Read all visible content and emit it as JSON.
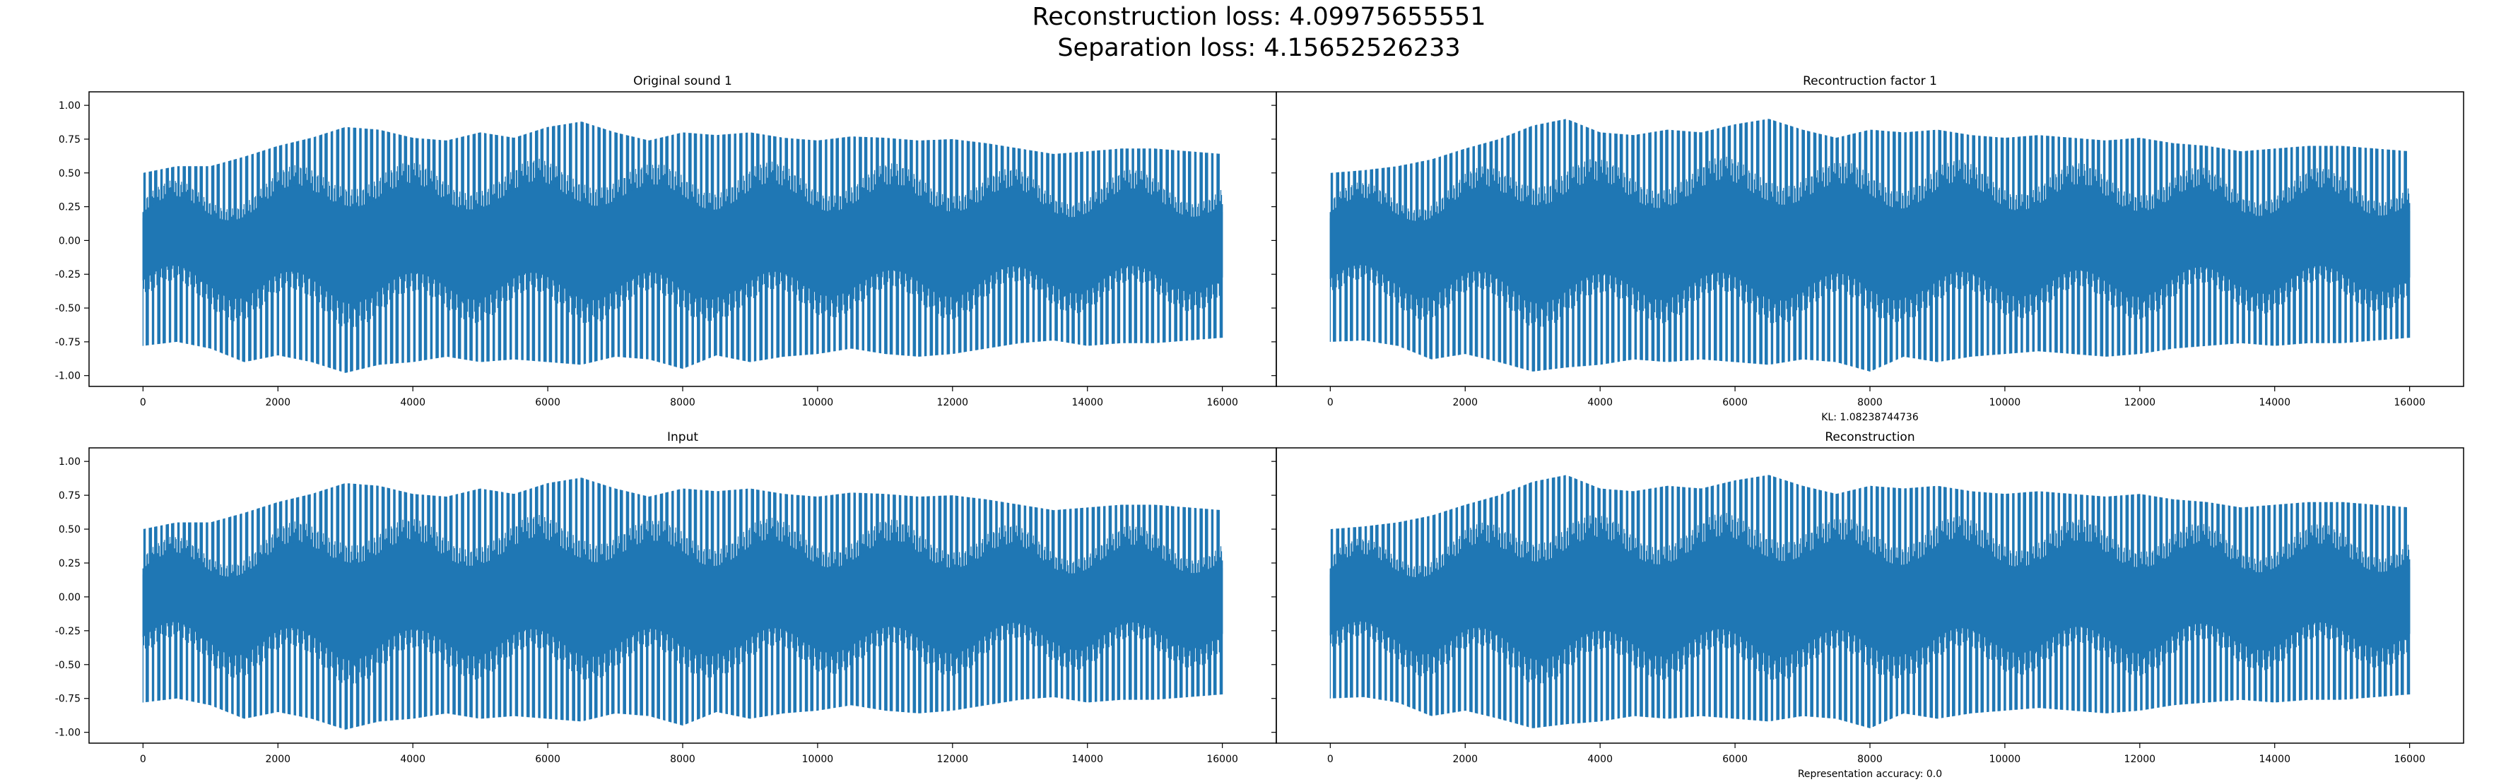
{
  "figure": {
    "title_line1": "Reconstruction loss: 4.09975655551",
    "title_line2": "Separation loss: 4.15652526233",
    "line_color": "#1f77b4"
  },
  "chart_data": [
    {
      "type": "line",
      "title": "Original sound 1",
      "xlabel": "",
      "xlim": [
        -800,
        16800
      ],
      "ylim": [
        -1.08,
        1.1
      ],
      "xticks": [
        0,
        2000,
        4000,
        6000,
        8000,
        10000,
        12000,
        14000,
        16000
      ],
      "yticks": [
        -1.0,
        -0.75,
        -0.5,
        -0.25,
        0.0,
        0.25,
        0.5,
        0.75,
        1.0
      ],
      "ytick_labels": [
        "-1.00",
        "-0.75",
        "-0.50",
        "-0.25",
        "0.00",
        "0.25",
        "0.50",
        "0.75",
        "1.00"
      ],
      "samples": 16000,
      "envelope_x": [
        0,
        500,
        1000,
        1500,
        2000,
        2500,
        3000,
        3500,
        4000,
        4500,
        5000,
        5500,
        6000,
        6500,
        7000,
        7500,
        8000,
        8500,
        9000,
        9500,
        10000,
        10500,
        11000,
        11500,
        12000,
        12500,
        13000,
        13500,
        14000,
        14500,
        15000,
        15500,
        16000
      ],
      "envelope_max": [
        0.5,
        0.55,
        0.55,
        0.62,
        0.7,
        0.76,
        0.84,
        0.82,
        0.76,
        0.74,
        0.8,
        0.76,
        0.84,
        0.88,
        0.8,
        0.74,
        0.8,
        0.78,
        0.8,
        0.76,
        0.74,
        0.77,
        0.76,
        0.74,
        0.75,
        0.72,
        0.68,
        0.64,
        0.66,
        0.68,
        0.68,
        0.66,
        0.64
      ],
      "envelope_min": [
        -0.78,
        -0.75,
        -0.8,
        -0.9,
        -0.85,
        -0.9,
        -0.98,
        -0.92,
        -0.9,
        -0.86,
        -0.9,
        -0.88,
        -0.9,
        -0.92,
        -0.86,
        -0.88,
        -0.95,
        -0.85,
        -0.9,
        -0.86,
        -0.84,
        -0.8,
        -0.84,
        -0.86,
        -0.84,
        -0.8,
        -0.76,
        -0.74,
        -0.78,
        -0.76,
        -0.76,
        -0.74,
        -0.72
      ]
    },
    {
      "type": "line",
      "title": "Recontruction factor 1",
      "xlabel": "KL: 1.08238744736",
      "xlim": [
        -800,
        16800
      ],
      "ylim": [
        -1.08,
        1.1
      ],
      "xticks": [
        0,
        2000,
        4000,
        6000,
        8000,
        10000,
        12000,
        14000,
        16000
      ],
      "yticks": [],
      "ytick_labels": [],
      "samples": 16000,
      "envelope_x": [
        0,
        500,
        1000,
        1500,
        2000,
        2500,
        3000,
        3500,
        4000,
        4500,
        5000,
        5500,
        6000,
        6500,
        7000,
        7500,
        8000,
        8500,
        9000,
        9500,
        10000,
        10500,
        11000,
        11500,
        12000,
        12500,
        13000,
        13500,
        14000,
        14500,
        15000,
        15500,
        16000
      ],
      "envelope_max": [
        0.5,
        0.52,
        0.55,
        0.6,
        0.68,
        0.75,
        0.85,
        0.9,
        0.8,
        0.78,
        0.82,
        0.8,
        0.86,
        0.9,
        0.82,
        0.76,
        0.82,
        0.8,
        0.82,
        0.78,
        0.76,
        0.78,
        0.76,
        0.74,
        0.76,
        0.72,
        0.7,
        0.66,
        0.68,
        0.7,
        0.7,
        0.68,
        0.66
      ],
      "envelope_min": [
        -0.75,
        -0.74,
        -0.78,
        -0.88,
        -0.84,
        -0.9,
        -0.97,
        -0.94,
        -0.92,
        -0.88,
        -0.9,
        -0.88,
        -0.9,
        -0.92,
        -0.88,
        -0.9,
        -0.97,
        -0.86,
        -0.9,
        -0.86,
        -0.84,
        -0.82,
        -0.84,
        -0.86,
        -0.84,
        -0.8,
        -0.78,
        -0.76,
        -0.78,
        -0.76,
        -0.76,
        -0.74,
        -0.72
      ]
    },
    {
      "type": "line",
      "title": "Input",
      "xlabel": "",
      "xlim": [
        -800,
        16800
      ],
      "ylim": [
        -1.08,
        1.1
      ],
      "xticks": [
        0,
        2000,
        4000,
        6000,
        8000,
        10000,
        12000,
        14000,
        16000
      ],
      "yticks": [
        -1.0,
        -0.75,
        -0.5,
        -0.25,
        0.0,
        0.25,
        0.5,
        0.75,
        1.0
      ],
      "ytick_labels": [
        "-1.00",
        "-0.75",
        "-0.50",
        "-0.25",
        "0.00",
        "0.25",
        "0.50",
        "0.75",
        "1.00"
      ],
      "samples": 16000,
      "envelope_x": [
        0,
        500,
        1000,
        1500,
        2000,
        2500,
        3000,
        3500,
        4000,
        4500,
        5000,
        5500,
        6000,
        6500,
        7000,
        7500,
        8000,
        8500,
        9000,
        9500,
        10000,
        10500,
        11000,
        11500,
        12000,
        12500,
        13000,
        13500,
        14000,
        14500,
        15000,
        15500,
        16000
      ],
      "envelope_max": [
        0.5,
        0.55,
        0.55,
        0.62,
        0.7,
        0.76,
        0.84,
        0.82,
        0.76,
        0.74,
        0.8,
        0.76,
        0.84,
        0.88,
        0.8,
        0.74,
        0.8,
        0.78,
        0.8,
        0.76,
        0.74,
        0.77,
        0.76,
        0.74,
        0.75,
        0.72,
        0.68,
        0.64,
        0.66,
        0.68,
        0.68,
        0.66,
        0.64
      ],
      "envelope_min": [
        -0.78,
        -0.75,
        -0.8,
        -0.9,
        -0.85,
        -0.9,
        -0.98,
        -0.92,
        -0.9,
        -0.86,
        -0.9,
        -0.88,
        -0.9,
        -0.92,
        -0.86,
        -0.88,
        -0.95,
        -0.85,
        -0.9,
        -0.86,
        -0.84,
        -0.8,
        -0.84,
        -0.86,
        -0.84,
        -0.8,
        -0.76,
        -0.74,
        -0.78,
        -0.76,
        -0.76,
        -0.74,
        -0.72
      ]
    },
    {
      "type": "line",
      "title": "Reconstruction",
      "xlabel": "Representation accuracy: 0.0",
      "xlim": [
        -800,
        16800
      ],
      "ylim": [
        -1.08,
        1.1
      ],
      "xticks": [
        0,
        2000,
        4000,
        6000,
        8000,
        10000,
        12000,
        14000,
        16000
      ],
      "yticks": [],
      "ytick_labels": [],
      "samples": 16000,
      "envelope_x": [
        0,
        500,
        1000,
        1500,
        2000,
        2500,
        3000,
        3500,
        4000,
        4500,
        5000,
        5500,
        6000,
        6500,
        7000,
        7500,
        8000,
        8500,
        9000,
        9500,
        10000,
        10500,
        11000,
        11500,
        12000,
        12500,
        13000,
        13500,
        14000,
        14500,
        15000,
        15500,
        16000
      ],
      "envelope_max": [
        0.5,
        0.52,
        0.55,
        0.6,
        0.68,
        0.75,
        0.85,
        0.9,
        0.8,
        0.78,
        0.82,
        0.8,
        0.86,
        0.9,
        0.82,
        0.76,
        0.82,
        0.8,
        0.82,
        0.78,
        0.76,
        0.78,
        0.76,
        0.74,
        0.76,
        0.72,
        0.7,
        0.66,
        0.68,
        0.7,
        0.7,
        0.68,
        0.66
      ],
      "envelope_min": [
        -0.75,
        -0.74,
        -0.78,
        -0.88,
        -0.84,
        -0.9,
        -0.97,
        -0.94,
        -0.92,
        -0.88,
        -0.9,
        -0.88,
        -0.9,
        -0.92,
        -0.88,
        -0.9,
        -0.97,
        -0.86,
        -0.9,
        -0.86,
        -0.84,
        -0.82,
        -0.84,
        -0.86,
        -0.84,
        -0.8,
        -0.78,
        -0.76,
        -0.78,
        -0.76,
        -0.76,
        -0.74,
        -0.72
      ]
    }
  ]
}
